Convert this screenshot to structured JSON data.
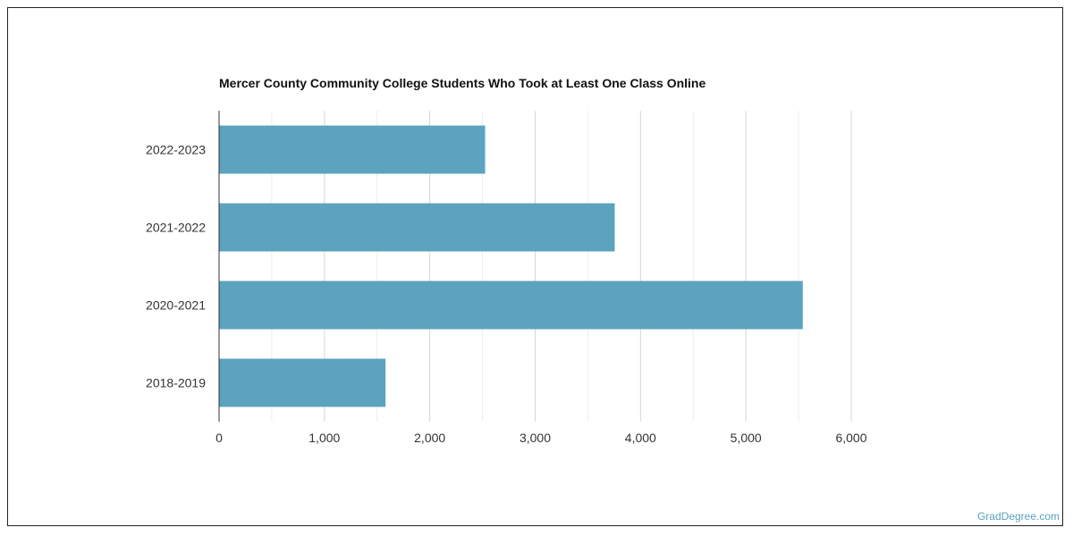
{
  "chart_data": {
    "type": "bar",
    "orientation": "horizontal",
    "title": "Mercer County Community College Students Who Took at Least One Class Online",
    "categories": [
      "2022-2023",
      "2021-2022",
      "2020-2021",
      "2018-2019"
    ],
    "values": [
      2525,
      3755,
      5540,
      1580
    ],
    "xlim": [
      0,
      6000
    ],
    "x_ticks": [
      "0",
      "1,000",
      "2,000",
      "3,000",
      "4,000",
      "5,000",
      "6,000"
    ],
    "xlabel": "",
    "ylabel": "",
    "grid": true,
    "bar_color": "#5ba3bf"
  },
  "watermark": "GradDegree.com"
}
